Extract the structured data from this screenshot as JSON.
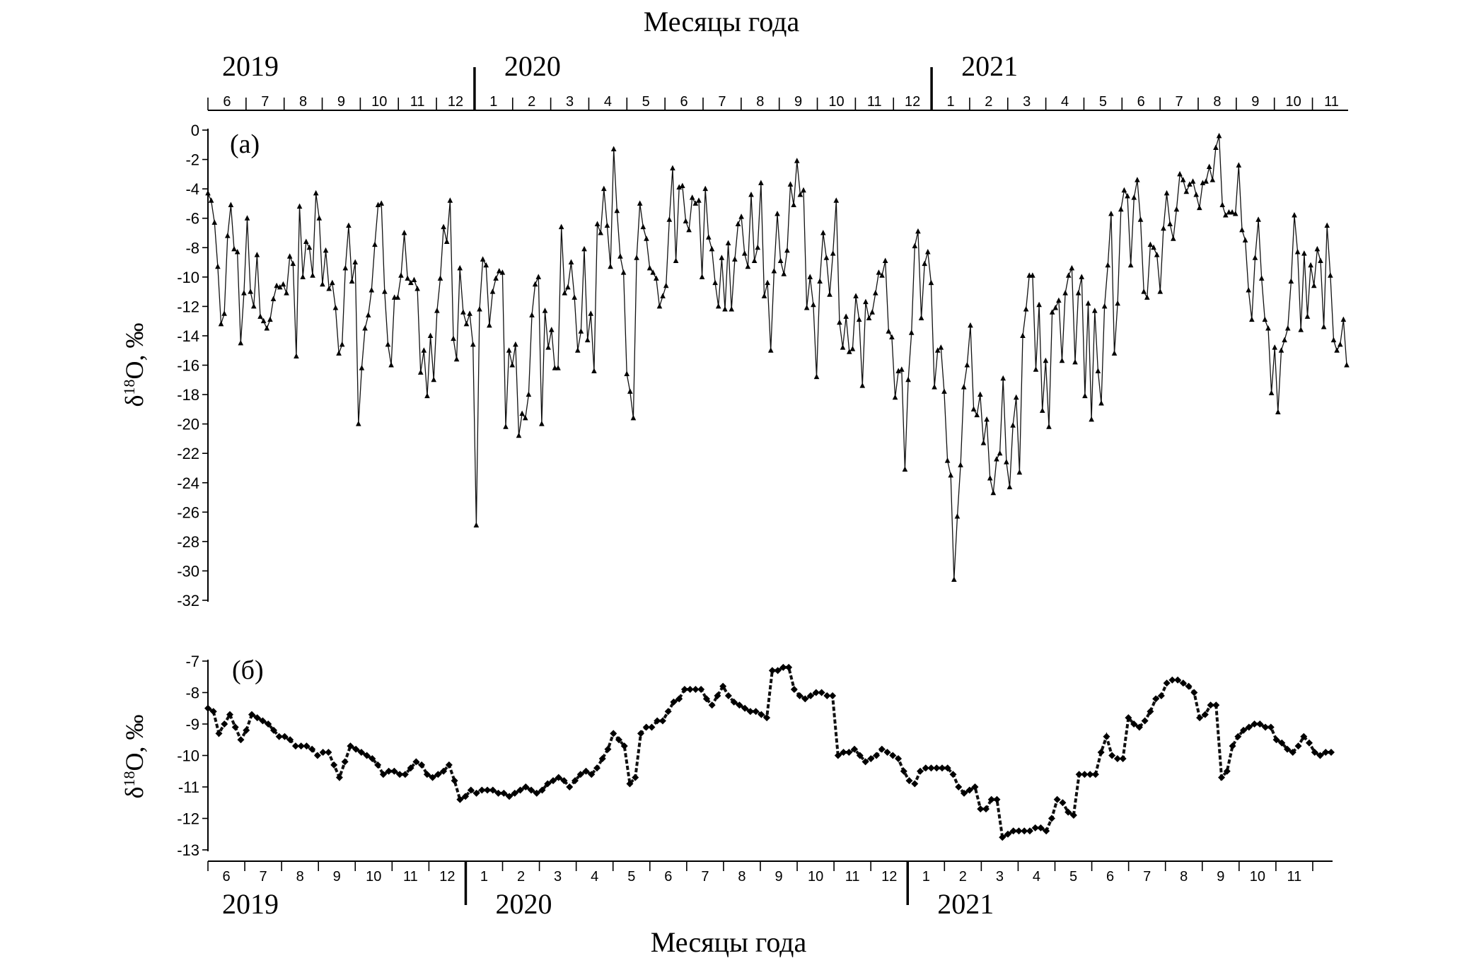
{
  "figure": {
    "top_axis_title": "Месяцы года",
    "bottom_axis_title": "Месяцы года"
  },
  "chart_data": [
    {
      "type": "line",
      "panel_label": "(а)",
      "ylabel": "δ18O, ‰",
      "ylabel_main": "δ",
      "ylabel_sup": "18",
      "ylabel_rest": "O, ‰",
      "ylim": [
        -32,
        0
      ],
      "y_ticks": [
        0,
        -2,
        -4,
        -6,
        -8,
        -10,
        -12,
        -14,
        -16,
        -18,
        -20,
        -22,
        -24,
        -26,
        -28,
        -30,
        -32
      ],
      "x_unit": "month index since 2019-06 (0 = start of June 2019)",
      "x_range": [
        0,
        29.9
      ],
      "years": [
        {
          "label": "2019",
          "at": 0
        },
        {
          "label": "2020",
          "at": 7
        },
        {
          "label": "2021",
          "at": 19
        }
      ],
      "months": [
        "6",
        "7",
        "8",
        "9",
        "10",
        "11",
        "12",
        "1",
        "2",
        "3",
        "4",
        "5",
        "6",
        "7",
        "8",
        "9",
        "10",
        "11",
        "12",
        "1",
        "2",
        "3",
        "4",
        "5",
        "6",
        "7",
        "8",
        "9",
        "10",
        "11"
      ],
      "marker": "triangle",
      "values": [
        -4.3,
        -4.8,
        -6.3,
        -9.3,
        -13.2,
        -12.5,
        -7.2,
        -5.1,
        -8.1,
        -8.3,
        -14.5,
        -11.1,
        -6,
        -11,
        -12,
        -8.5,
        -12.7,
        -13,
        -13.5,
        -12.9,
        -11.5,
        -10.6,
        -10.7,
        -10.5,
        -11.1,
        -8.6,
        -9.1,
        -15.4,
        -5.2,
        -10,
        -7.6,
        -8,
        -9.9,
        -4.3,
        -6,
        -10.5,
        -8.2,
        -10.8,
        -10.4,
        -12.1,
        -15.2,
        -14.6,
        -9.4,
        -6.5,
        -10.3,
        -9,
        -20,
        -16.2,
        -13.5,
        -12.6,
        -10.9,
        -7.8,
        -5.1,
        -5,
        -11,
        -14.6,
        -16,
        -11.4,
        -11.4,
        -9.9,
        -7,
        -10.1,
        -10.4,
        -10.2,
        -10.8,
        -16.5,
        -15,
        -18.1,
        -14,
        -17,
        -12.3,
        -10.1,
        -6.6,
        -7.6,
        -4.8,
        -14.2,
        -15.6,
        -9.4,
        -12.4,
        -13.2,
        -12.5,
        -14.6,
        -26.9,
        -12.2,
        -8.8,
        -9.2,
        -13.3,
        -11,
        -10.1,
        -9.6,
        -9.7,
        -20.2,
        -15,
        -16,
        -14.6,
        -20.8,
        -19.3,
        -19.6,
        -18,
        -12.6,
        -10.5,
        -10,
        -20,
        -12.3,
        -14.8,
        -13.6,
        -16.2,
        -16.2,
        -6.6,
        -11.1,
        -10.7,
        -9,
        -11.4,
        -15,
        -13.7,
        -8.1,
        -14.3,
        -12.5,
        -16.4,
        -6.4,
        -7,
        -4,
        -6.5,
        -9.3,
        -1.3,
        -5.5,
        -8.6,
        -9.7,
        -16.6,
        -17.8,
        -19.6,
        -8.7,
        -5,
        -6.6,
        -7.4,
        -9.4,
        -9.7,
        -10.1,
        -12,
        -11.3,
        -10.6,
        -6.1,
        -2.6,
        -8.9,
        -3.9,
        -3.8,
        -6.2,
        -6.8,
        -4.6,
        -5,
        -4.8,
        -10,
        -4,
        -7.3,
        -8.1,
        -10.4,
        -12,
        -8.7,
        -12.2,
        -7.7,
        -12.2,
        -8.8,
        -6.4,
        -5.9,
        -8.4,
        -9.3,
        -4.4,
        -8.9,
        -8,
        -3.6,
        -11.3,
        -10.4,
        -15,
        -9.6,
        -5.7,
        -8.9,
        -9.8,
        -8.2,
        -3.7,
        -5.1,
        -2.1,
        -4.4,
        -4.1,
        -12.1,
        -10,
        -11.9,
        -16.8,
        -10.3,
        -7,
        -8.7,
        -11.2,
        -8.4,
        -4.8,
        -13.1,
        -14.8,
        -12.7,
        -15.1,
        -14.9,
        -11.3,
        -12.9,
        -17.4,
        -11.7,
        -12.8,
        -12.4,
        -11.1,
        -9.7,
        -9.9,
        -8.9,
        -13.7,
        -14.1,
        -18.2,
        -16.4,
        -16.3,
        -23.1,
        -17,
        -13.8,
        -7.9,
        -6.9,
        -12.8,
        -9.1,
        -8.3,
        -10.4,
        -17.5,
        -15,
        -14.8,
        -17.8,
        -22.5,
        -23.5,
        -30.6,
        -26.3,
        -22.8,
        -17.5,
        -16,
        -13.3,
        -19,
        -19.4,
        -18,
        -21.3,
        -19.7,
        -23.7,
        -24.7,
        -22.4,
        -22,
        -16.9,
        -22.6,
        -24.3,
        -20.1,
        -18.2,
        -23.3,
        -14,
        -12.2,
        -9.9,
        -9.9,
        -16.3,
        -11.9,
        -19.1,
        -15.7,
        -20.2,
        -12.4,
        -12.1,
        -11.6,
        -15.7,
        -11.1,
        -9.9,
        -9.4,
        -15.8,
        -11.1,
        -10,
        -18.1,
        -11.8,
        -19.7,
        -12.3,
        -16.4,
        -18.6,
        -12,
        -9.2,
        -5.7,
        -15.2,
        -11.8,
        -5.4,
        -4.1,
        -4.5,
        -9.2,
        -4.6,
        -3.4,
        -6.1,
        -11,
        -11.4,
        -7.8,
        -8,
        -8.5,
        -11,
        -6.7,
        -4.3,
        -6.4,
        -7.4,
        -5.4,
        -3,
        -3.4,
        -4.2,
        -3.7,
        -3.5,
        -4.4,
        -5.3,
        -3.6,
        -3.5,
        -2.5,
        -3.4,
        -1.2,
        -0.4,
        -5.1,
        -5.8,
        -5.6,
        -5.6,
        -5.7,
        -2.4,
        -6.8,
        -7.5,
        -10.9,
        -12.9,
        -8.7,
        -6.1,
        -10.1,
        -12.9,
        -13.5,
        -17.9,
        -14.8,
        -19.2,
        -15,
        -14.3,
        -13.5,
        -10.3,
        -5.8,
        -8.3,
        -13.6,
        -8.4,
        -12.7,
        -9.2,
        -10.6,
        -8.1,
        -8.9,
        -13.4,
        -6.5,
        -9.9,
        -14.3,
        -15,
        -14.6,
        -12.9,
        -16
      ]
    },
    {
      "type": "line",
      "panel_label": "(б)",
      "ylabel": "δ18O, ‰",
      "ylabel_main": "δ",
      "ylabel_sup": "18",
      "ylabel_rest": "O, ‰",
      "ylim": [
        -13,
        -7
      ],
      "y_ticks": [
        -7,
        -8,
        -9,
        -10,
        -11,
        -12,
        -13
      ],
      "x_unit": "month index since 2019-06 (0 = start of June 2019)",
      "x_range": [
        0,
        30.5
      ],
      "years": [
        {
          "label": "2019",
          "at": 0
        },
        {
          "label": "2020",
          "at": 7
        },
        {
          "label": "2021",
          "at": 19
        }
      ],
      "months": [
        "6",
        "7",
        "8",
        "9",
        "10",
        "11",
        "12",
        "1",
        "2",
        "3",
        "4",
        "5",
        "6",
        "7",
        "8",
        "9",
        "10",
        "11",
        "12",
        "1",
        "2",
        "3",
        "4",
        "5",
        "6",
        "7",
        "8",
        "9",
        "10",
        "11"
      ],
      "marker": "diamond",
      "values": [
        -8.5,
        -8.6,
        -9.3,
        -9,
        -8.7,
        -9.1,
        -9.5,
        -9.2,
        -8.7,
        -8.8,
        -8.9,
        -9,
        -9.2,
        -9.4,
        -9.4,
        -9.5,
        -9.7,
        -9.7,
        -9.7,
        -9.8,
        -10,
        -9.9,
        -9.9,
        -10.3,
        -10.7,
        -10.2,
        -9.7,
        -9.8,
        -9.9,
        -10,
        -10.1,
        -10.3,
        -10.6,
        -10.5,
        -10.5,
        -10.6,
        -10.6,
        -10.4,
        -10.2,
        -10.3,
        -10.6,
        -10.7,
        -10.6,
        -10.5,
        -10.3,
        -10.8,
        -11.4,
        -11.3,
        -11.1,
        -11.2,
        -11.1,
        -11.1,
        -11.1,
        -11.2,
        -11.2,
        -11.3,
        -11.2,
        -11.1,
        -11,
        -11.1,
        -11.2,
        -11.1,
        -10.9,
        -10.8,
        -10.7,
        -10.8,
        -11,
        -10.8,
        -10.6,
        -10.5,
        -10.6,
        -10.4,
        -10.1,
        -9.8,
        -9.3,
        -9.5,
        -9.7,
        -10.9,
        -10.7,
        -9.3,
        -9.1,
        -9.1,
        -8.9,
        -8.9,
        -8.6,
        -8.3,
        -8.2,
        -7.9,
        -7.9,
        -7.9,
        -7.9,
        -8.2,
        -8.4,
        -8.1,
        -7.8,
        -8.1,
        -8.3,
        -8.4,
        -8.5,
        -8.6,
        -8.6,
        -8.7,
        -8.8,
        -7.3,
        -7.3,
        -7.2,
        -7.2,
        -7.9,
        -8.1,
        -8.2,
        -8.1,
        -8,
        -8,
        -8.1,
        -8.1,
        -10,
        -9.9,
        -9.9,
        -9.8,
        -10,
        -10.2,
        -10.1,
        -10,
        -9.8,
        -9.9,
        -10,
        -10.1,
        -10.5,
        -10.8,
        -10.9,
        -10.5,
        -10.4,
        -10.4,
        -10.4,
        -10.4,
        -10.4,
        -10.6,
        -11,
        -11.2,
        -11.1,
        -11,
        -11.7,
        -11.7,
        -11.4,
        -11.4,
        -12.6,
        -12.5,
        -12.4,
        -12.4,
        -12.4,
        -12.4,
        -12.3,
        -12.3,
        -12.4,
        -12,
        -11.4,
        -11.5,
        -11.8,
        -11.9,
        -10.6,
        -10.6,
        -10.6,
        -10.6,
        -9.9,
        -9.4,
        -10,
        -10.1,
        -10.1,
        -8.8,
        -9,
        -9.1,
        -8.9,
        -8.6,
        -8.2,
        -8.1,
        -7.7,
        -7.6,
        -7.6,
        -7.7,
        -7.8,
        -8,
        -8.8,
        -8.7,
        -8.4,
        -8.4,
        -10.7,
        -10.5,
        -9.7,
        -9.4,
        -9.2,
        -9.1,
        -9,
        -9,
        -9.1,
        -9.1,
        -9.5,
        -9.6,
        -9.8,
        -9.9,
        -9.7,
        -9.4,
        -9.6,
        -9.9,
        -10,
        -9.9,
        -9.9
      ]
    }
  ]
}
